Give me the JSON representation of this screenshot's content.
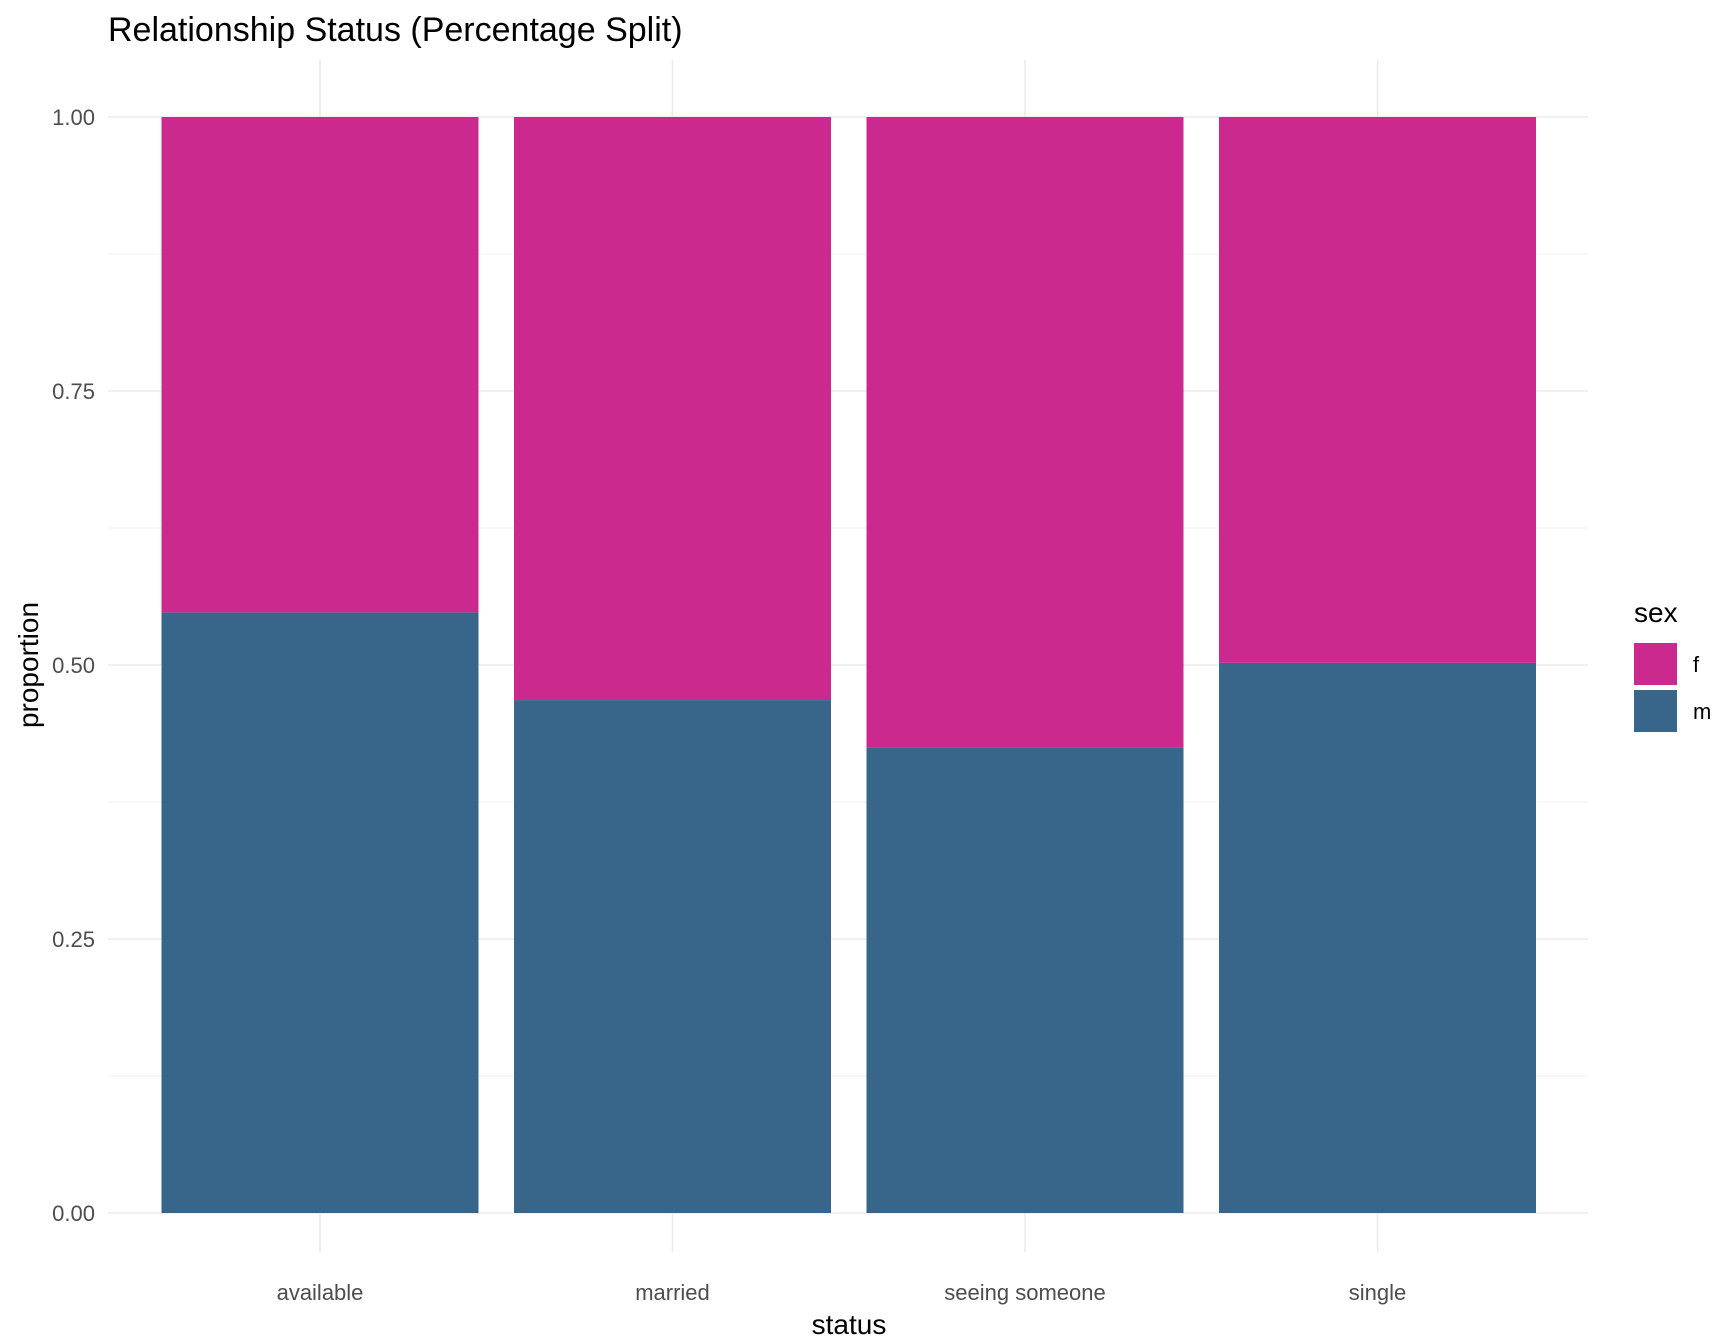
{
  "chart_data": {
    "type": "bar",
    "stacked": "fill",
    "title": "Relationship Status (Percentage Split)",
    "xlabel": "status",
    "ylabel": "proportion",
    "categories": [
      "available",
      "married",
      "seeing someone",
      "single"
    ],
    "series": [
      {
        "name": "f",
        "color": "#CC298F",
        "values": [
          0.452,
          0.532,
          0.575,
          0.498
        ]
      },
      {
        "name": "m",
        "color": "#37668A",
        "values": [
          0.548,
          0.468,
          0.425,
          0.502
        ]
      }
    ],
    "ylim": [
      0,
      1
    ],
    "yticks": [
      "0.00",
      "0.25",
      "0.50",
      "0.75",
      "1.00"
    ],
    "grid": true,
    "legend": {
      "title": "sex",
      "position": "right",
      "entries": [
        "f",
        "m"
      ]
    }
  }
}
